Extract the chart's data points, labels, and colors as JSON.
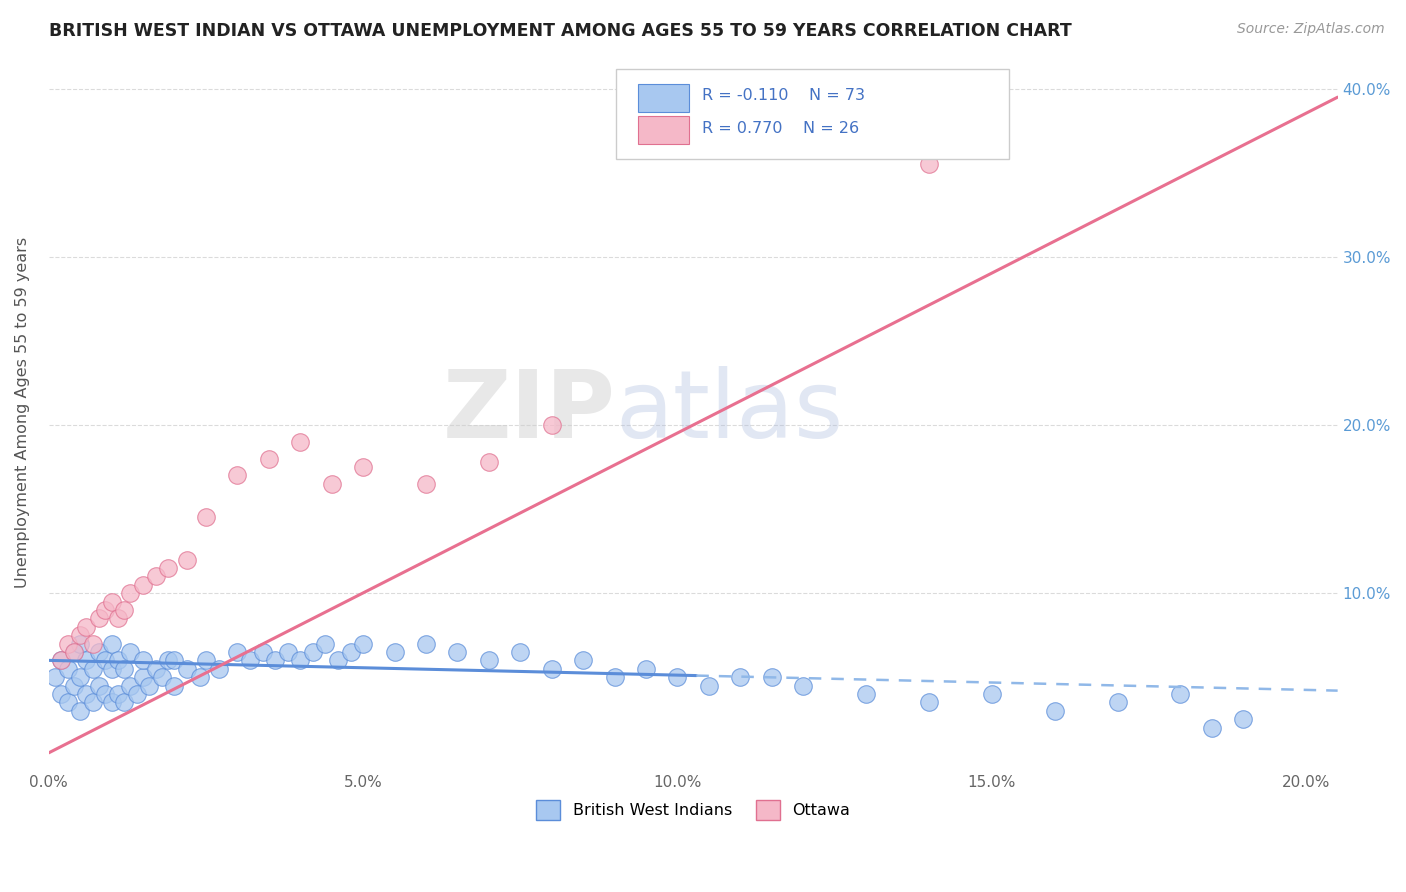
{
  "title": "BRITISH WEST INDIAN VS OTTAWA UNEMPLOYMENT AMONG AGES 55 TO 59 YEARS CORRELATION CHART",
  "source": "Source: ZipAtlas.com",
  "ylabel": "Unemployment Among Ages 55 to 59 years",
  "xlim": [
    0.0,
    0.205
  ],
  "ylim": [
    -0.005,
    0.42
  ],
  "yticks_right": [
    0.1,
    0.2,
    0.3,
    0.4
  ],
  "ytick_labels_right": [
    "10.0%",
    "20.0%",
    "30.0%",
    "40.0%"
  ],
  "xticks": [
    0.0,
    0.05,
    0.1,
    0.15,
    0.2
  ],
  "xtick_labels": [
    "0.0%",
    "5.0%",
    "10.0%",
    "15.0%",
    "20.0%"
  ],
  "color_blue": "#A8C8F0",
  "color_blue_edge": "#5B8DD9",
  "color_pink": "#F5B8C8",
  "color_pink_edge": "#E07090",
  "color_blue_text": "#4472C4",
  "trend_blue_solid": "#5B8DD9",
  "trend_blue_dash": "#90B8E8",
  "trend_pink": "#E87090",
  "watermark_zip": "ZIP",
  "watermark_atlas": "atlas",
  "bwi_x": [
    0.001,
    0.002,
    0.002,
    0.003,
    0.003,
    0.004,
    0.004,
    0.005,
    0.005,
    0.005,
    0.006,
    0.006,
    0.007,
    0.007,
    0.008,
    0.008,
    0.009,
    0.009,
    0.01,
    0.01,
    0.01,
    0.011,
    0.011,
    0.012,
    0.012,
    0.013,
    0.013,
    0.014,
    0.015,
    0.015,
    0.016,
    0.017,
    0.018,
    0.019,
    0.02,
    0.02,
    0.022,
    0.024,
    0.025,
    0.027,
    0.03,
    0.032,
    0.034,
    0.036,
    0.038,
    0.04,
    0.042,
    0.044,
    0.046,
    0.048,
    0.05,
    0.055,
    0.06,
    0.065,
    0.07,
    0.075,
    0.08,
    0.085,
    0.09,
    0.095,
    0.1,
    0.105,
    0.11,
    0.12,
    0.13,
    0.14,
    0.15,
    0.16,
    0.17,
    0.18,
    0.185,
    0.19,
    0.115
  ],
  "bwi_y": [
    0.05,
    0.04,
    0.06,
    0.035,
    0.055,
    0.045,
    0.065,
    0.03,
    0.05,
    0.07,
    0.04,
    0.06,
    0.035,
    0.055,
    0.045,
    0.065,
    0.04,
    0.06,
    0.035,
    0.055,
    0.07,
    0.04,
    0.06,
    0.035,
    0.055,
    0.045,
    0.065,
    0.04,
    0.05,
    0.06,
    0.045,
    0.055,
    0.05,
    0.06,
    0.045,
    0.06,
    0.055,
    0.05,
    0.06,
    0.055,
    0.065,
    0.06,
    0.065,
    0.06,
    0.065,
    0.06,
    0.065,
    0.07,
    0.06,
    0.065,
    0.07,
    0.065,
    0.07,
    0.065,
    0.06,
    0.065,
    0.055,
    0.06,
    0.05,
    0.055,
    0.05,
    0.045,
    0.05,
    0.045,
    0.04,
    0.035,
    0.04,
    0.03,
    0.035,
    0.04,
    0.02,
    0.025,
    0.05
  ],
  "ottawa_x": [
    0.002,
    0.003,
    0.004,
    0.005,
    0.006,
    0.007,
    0.008,
    0.009,
    0.01,
    0.011,
    0.012,
    0.013,
    0.015,
    0.017,
    0.019,
    0.022,
    0.025,
    0.03,
    0.035,
    0.04,
    0.045,
    0.05,
    0.06,
    0.07,
    0.08,
    0.14
  ],
  "ottawa_y": [
    0.06,
    0.07,
    0.065,
    0.075,
    0.08,
    0.07,
    0.085,
    0.09,
    0.095,
    0.085,
    0.09,
    0.1,
    0.105,
    0.11,
    0.115,
    0.12,
    0.145,
    0.17,
    0.18,
    0.19,
    0.165,
    0.175,
    0.165,
    0.178,
    0.2,
    0.355
  ],
  "trend_blue_x0": 0.0,
  "trend_blue_x_solid_end": 0.103,
  "trend_blue_x1": 0.205,
  "trend_blue_y0": 0.06,
  "trend_blue_y1": 0.042,
  "trend_pink_x0": 0.0,
  "trend_pink_x1": 0.205,
  "trend_pink_y0": 0.005,
  "trend_pink_y1": 0.395
}
